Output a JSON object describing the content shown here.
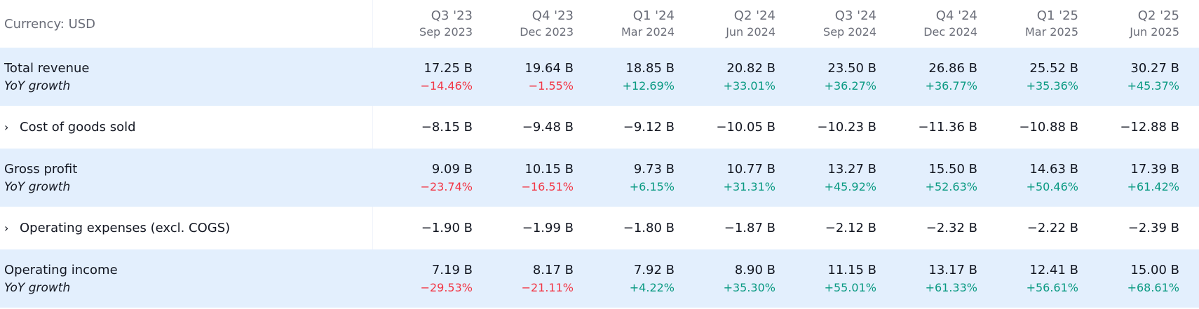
{
  "header": {
    "currency_label": "Currency: USD",
    "periods": [
      {
        "quarter": "Q3 '23",
        "date": "Sep 2023"
      },
      {
        "quarter": "Q4 '23",
        "date": "Dec 2023"
      },
      {
        "quarter": "Q1 '24",
        "date": "Mar 2024"
      },
      {
        "quarter": "Q2 '24",
        "date": "Jun 2024"
      },
      {
        "quarter": "Q3 '24",
        "date": "Sep 2024"
      },
      {
        "quarter": "Q4 '24",
        "date": "Dec 2024"
      },
      {
        "quarter": "Q1 '25",
        "date": "Mar 2025"
      },
      {
        "quarter": "Q2 '25",
        "date": "Jun 2025"
      }
    ]
  },
  "rows": {
    "total_revenue": {
      "label": "Total revenue",
      "sub_label": "YoY growth",
      "values": [
        "17.25 B",
        "19.64 B",
        "18.85 B",
        "20.82 B",
        "23.50 B",
        "26.86 B",
        "25.52 B",
        "30.27 B"
      ],
      "growth": [
        "−14.46%",
        "−1.55%",
        "+12.69%",
        "+33.01%",
        "+36.27%",
        "+36.77%",
        "+35.36%",
        "+45.37%"
      ]
    },
    "cogs": {
      "label": "Cost of goods sold",
      "chevron": "›",
      "values": [
        "−8.15 B",
        "−9.48 B",
        "−9.12 B",
        "−10.05 B",
        "−10.23 B",
        "−11.36 B",
        "−10.88 B",
        "−12.88 B"
      ]
    },
    "gross_profit": {
      "label": "Gross profit",
      "sub_label": "YoY growth",
      "values": [
        "9.09 B",
        "10.15 B",
        "9.73 B",
        "10.77 B",
        "13.27 B",
        "15.50 B",
        "14.63 B",
        "17.39 B"
      ],
      "growth": [
        "−23.74%",
        "−16.51%",
        "+6.15%",
        "+31.31%",
        "+45.92%",
        "+52.63%",
        "+50.46%",
        "+61.42%"
      ]
    },
    "opex": {
      "label": "Operating expenses (excl. COGS)",
      "chevron": "›",
      "values": [
        "−1.90 B",
        "−1.99 B",
        "−1.80 B",
        "−1.87 B",
        "−2.12 B",
        "−2.32 B",
        "−2.22 B",
        "−2.39 B"
      ]
    },
    "operating_income": {
      "label": "Operating income",
      "sub_label": "YoY growth",
      "values": [
        "7.19 B",
        "8.17 B",
        "7.92 B",
        "8.90 B",
        "11.15 B",
        "13.17 B",
        "12.41 B",
        "15.00 B"
      ],
      "growth": [
        "−29.53%",
        "−21.11%",
        "+4.22%",
        "+35.30%",
        "+55.01%",
        "+61.33%",
        "+56.61%",
        "+68.61%"
      ]
    }
  },
  "colors": {
    "highlight_row": "#e3effd",
    "negative": "#f23645",
    "positive": "#089981",
    "muted_text": "#6a6d78"
  }
}
